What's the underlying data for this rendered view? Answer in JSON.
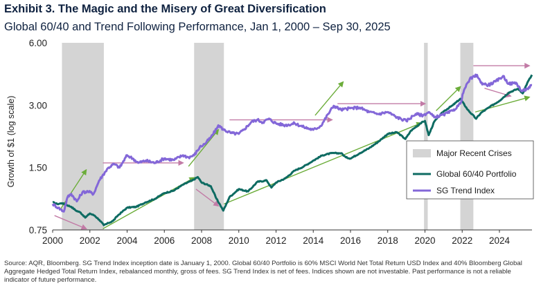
{
  "title": "Exhibit 3. The Magic and the Misery of Great Diversification",
  "subtitle": "Global 60/40 and Trend Following Performance, Jan 1, 2000 – Sep 30, 2025",
  "source": "Source: AQR, Bloomberg. SG Trend Index inception date is January 1, 2000. Global 60/40 Portfolio is 60% MSCI World Net Total Return USD Index and 40% Bloomberg Global Aggregate Hedged Total Return Index, rebalanced monthly, gross of fees. SG Trend Index is net of fees. Indices shown are not investable. Past performance is not a reliable indicator of future performance.",
  "colors": {
    "sixty_forty": "#0e6b62",
    "trend": "#8367d8",
    "crisis": "#d4d4d4",
    "green_arrow": "#6cad3a",
    "pink_arrow": "#c27ba6",
    "axis": "#333333"
  },
  "chart_data": {
    "type": "line",
    "ylabel": "Growth of $1 (log scale)",
    "xlabel": "",
    "yscale": "log",
    "ylim": [
      0.75,
      6.0
    ],
    "xlim": [
      2000,
      2025.75
    ],
    "yticks": [
      "0.75",
      "1.50",
      "3.00",
      "6.00"
    ],
    "xticks": [
      "2000",
      "2002",
      "2004",
      "2006",
      "2008",
      "2010",
      "2012",
      "2014",
      "2016",
      "2018",
      "2020",
      "2022",
      "2024"
    ],
    "crises": {
      "name": "Major Recent Crises",
      "periods": [
        [
          2000.5,
          2002.75
        ],
        [
          2007.6,
          2009.2
        ],
        [
          2019.95,
          2020.15
        ],
        [
          2021.9,
          2022.6
        ]
      ]
    },
    "series": [
      {
        "name": "Global 60/40 Portfolio",
        "points": [
          [
            2000.0,
            1.02
          ],
          [
            2000.25,
            1.0
          ],
          [
            2000.5,
            1.01
          ],
          [
            2000.75,
            0.99
          ],
          [
            2001.0,
            0.97
          ],
          [
            2001.25,
            0.93
          ],
          [
            2001.5,
            0.91
          ],
          [
            2001.75,
            0.86
          ],
          [
            2002.0,
            0.9
          ],
          [
            2002.25,
            0.88
          ],
          [
            2002.5,
            0.84
          ],
          [
            2002.75,
            0.79
          ],
          [
            2003.0,
            0.81
          ],
          [
            2003.25,
            0.83
          ],
          [
            2003.5,
            0.88
          ],
          [
            2003.75,
            0.92
          ],
          [
            2004.0,
            0.96
          ],
          [
            2004.5,
            0.97
          ],
          [
            2005.0,
            1.02
          ],
          [
            2005.5,
            1.06
          ],
          [
            2006.0,
            1.13
          ],
          [
            2006.5,
            1.16
          ],
          [
            2007.0,
            1.24
          ],
          [
            2007.5,
            1.3
          ],
          [
            2007.8,
            1.35
          ],
          [
            2008.0,
            1.27
          ],
          [
            2008.5,
            1.22
          ],
          [
            2008.8,
            1.06
          ],
          [
            2009.0,
            0.99
          ],
          [
            2009.17,
            0.93
          ],
          [
            2009.5,
            1.08
          ],
          [
            2010.0,
            1.18
          ],
          [
            2010.5,
            1.15
          ],
          [
            2011.0,
            1.28
          ],
          [
            2011.5,
            1.3
          ],
          [
            2011.75,
            1.2
          ],
          [
            2012.0,
            1.27
          ],
          [
            2012.5,
            1.33
          ],
          [
            2013.0,
            1.45
          ],
          [
            2013.5,
            1.52
          ],
          [
            2014.0,
            1.62
          ],
          [
            2014.5,
            1.72
          ],
          [
            2015.0,
            1.76
          ],
          [
            2015.5,
            1.76
          ],
          [
            2015.75,
            1.68
          ],
          [
            2016.0,
            1.66
          ],
          [
            2016.5,
            1.76
          ],
          [
            2017.0,
            1.86
          ],
          [
            2017.5,
            2.0
          ],
          [
            2018.0,
            2.18
          ],
          [
            2018.5,
            2.22
          ],
          [
            2018.95,
            2.06
          ],
          [
            2019.25,
            2.26
          ],
          [
            2019.75,
            2.45
          ],
          [
            2020.0,
            2.52
          ],
          [
            2020.2,
            2.15
          ],
          [
            2020.5,
            2.5
          ],
          [
            2021.0,
            2.8
          ],
          [
            2021.5,
            3.0
          ],
          [
            2021.9,
            3.22
          ],
          [
            2022.3,
            2.85
          ],
          [
            2022.75,
            2.58
          ],
          [
            2023.0,
            2.75
          ],
          [
            2023.5,
            2.95
          ],
          [
            2024.0,
            3.15
          ],
          [
            2024.5,
            3.45
          ],
          [
            2025.0,
            3.6
          ],
          [
            2025.25,
            3.42
          ],
          [
            2025.5,
            3.85
          ],
          [
            2025.75,
            4.2
          ]
        ]
      },
      {
        "name": "SG Trend Index",
        "points": [
          [
            2000.0,
            1.0
          ],
          [
            2000.3,
            0.96
          ],
          [
            2000.6,
            0.92
          ],
          [
            2000.8,
            1.08
          ],
          [
            2001.0,
            1.12
          ],
          [
            2001.3,
            1.03
          ],
          [
            2001.6,
            1.14
          ],
          [
            2001.9,
            1.15
          ],
          [
            2002.2,
            1.12
          ],
          [
            2002.5,
            1.3
          ],
          [
            2002.8,
            1.42
          ],
          [
            2003.0,
            1.5
          ],
          [
            2003.3,
            1.56
          ],
          [
            2003.6,
            1.5
          ],
          [
            2004.0,
            1.72
          ],
          [
            2004.3,
            1.66
          ],
          [
            2004.6,
            1.58
          ],
          [
            2005.0,
            1.62
          ],
          [
            2005.5,
            1.58
          ],
          [
            2006.0,
            1.66
          ],
          [
            2006.5,
            1.63
          ],
          [
            2007.0,
            1.72
          ],
          [
            2007.3,
            1.68
          ],
          [
            2007.6,
            1.72
          ],
          [
            2007.9,
            1.88
          ],
          [
            2008.2,
            1.96
          ],
          [
            2008.5,
            2.1
          ],
          [
            2008.8,
            2.3
          ],
          [
            2008.9,
            2.4
          ],
          [
            2009.2,
            2.28
          ],
          [
            2009.6,
            2.2
          ],
          [
            2010.0,
            2.18
          ],
          [
            2010.3,
            2.3
          ],
          [
            2010.7,
            2.5
          ],
          [
            2011.0,
            2.55
          ],
          [
            2011.3,
            2.48
          ],
          [
            2011.6,
            2.58
          ],
          [
            2012.0,
            2.45
          ],
          [
            2012.5,
            2.4
          ],
          [
            2013.0,
            2.45
          ],
          [
            2013.5,
            2.35
          ],
          [
            2014.0,
            2.28
          ],
          [
            2014.4,
            2.38
          ],
          [
            2014.8,
            2.72
          ],
          [
            2015.1,
            2.98
          ],
          [
            2015.5,
            2.85
          ],
          [
            2016.0,
            2.9
          ],
          [
            2016.5,
            2.92
          ],
          [
            2017.0,
            2.78
          ],
          [
            2017.5,
            2.72
          ],
          [
            2018.0,
            2.78
          ],
          [
            2018.5,
            2.62
          ],
          [
            2019.0,
            2.52
          ],
          [
            2019.5,
            2.72
          ],
          [
            2019.9,
            2.68
          ],
          [
            2020.2,
            2.78
          ],
          [
            2020.5,
            2.62
          ],
          [
            2021.0,
            2.7
          ],
          [
            2021.5,
            2.82
          ],
          [
            2021.9,
            3.05
          ],
          [
            2022.1,
            3.55
          ],
          [
            2022.4,
            4.0
          ],
          [
            2022.8,
            4.2
          ],
          [
            2023.0,
            3.85
          ],
          [
            2023.4,
            3.75
          ],
          [
            2023.8,
            3.9
          ],
          [
            2024.2,
            4.15
          ],
          [
            2024.5,
            3.8
          ],
          [
            2024.9,
            3.85
          ],
          [
            2025.2,
            3.5
          ],
          [
            2025.5,
            3.6
          ],
          [
            2025.75,
            3.75
          ]
        ]
      }
    ],
    "annotations": {
      "green_arrows": [
        [
          [
            2000.4,
            0.94
          ],
          [
            2001.8,
            1.46
          ]
        ],
        [
          [
            2002.7,
            0.76
          ],
          [
            2007.6,
            1.34
          ]
        ],
        [
          [
            2007.3,
            1.52
          ],
          [
            2008.9,
            2.28
          ]
        ],
        [
          [
            2009.2,
            1.0
          ],
          [
            2019.8,
            2.46
          ]
        ],
        [
          [
            2014.1,
            2.68
          ],
          [
            2015.6,
            3.88
          ]
        ],
        [
          [
            2020.6,
            2.82
          ],
          [
            2021.9,
            3.68
          ]
        ],
        [
          [
            2022.7,
            2.78
          ],
          [
            2025.6,
            3.28
          ]
        ]
      ],
      "pink_arrows": [
        [
          [
            2002.7,
            1.58
          ],
          [
            2007.0,
            1.58
          ]
        ],
        [
          [
            2009.5,
            2.55
          ],
          [
            2015.0,
            2.55
          ]
        ],
        [
          [
            2015.3,
            3.05
          ],
          [
            2020.0,
            3.05
          ]
        ],
        [
          [
            2022.6,
            4.65
          ],
          [
            2025.6,
            4.65
          ]
        ],
        [
          [
            2000.1,
            0.88
          ],
          [
            2001.8,
            0.76
          ]
        ],
        [
          [
            2007.7,
            1.18
          ],
          [
            2008.9,
            0.98
          ]
        ],
        [
          [
            2023.2,
            3.62
          ],
          [
            2024.6,
            3.32
          ]
        ]
      ]
    }
  }
}
